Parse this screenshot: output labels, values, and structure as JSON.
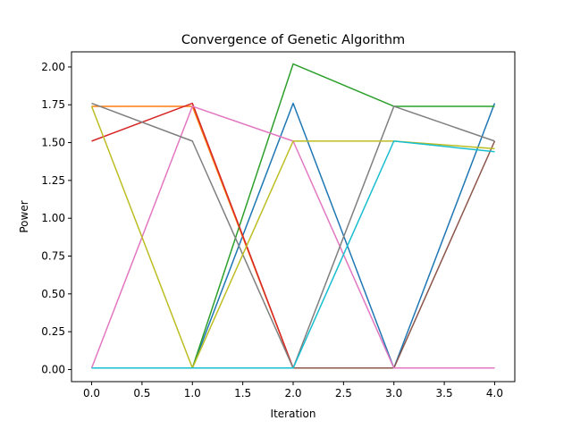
{
  "chart_data": {
    "type": "line",
    "title": "Convergence of Genetic Algorithm",
    "xlabel": "Iteration",
    "ylabel": "Power",
    "x": [
      0,
      1,
      2,
      3,
      4
    ],
    "xlim": [
      -0.2,
      4.2
    ],
    "ylim": [
      -0.08,
      2.1
    ],
    "xticks": [
      "0.0",
      "0.5",
      "1.0",
      "1.5",
      "2.0",
      "2.5",
      "3.0",
      "3.5",
      "4.0"
    ],
    "yticks": [
      "0.00",
      "0.25",
      "0.50",
      "0.75",
      "1.00",
      "1.25",
      "1.50",
      "1.75",
      "2.00"
    ],
    "grid": false,
    "series": [
      {
        "color": "#1f77b4",
        "values": [
          0.01,
          0.01,
          1.76,
          0.01,
          1.76
        ]
      },
      {
        "color": "#ff7f0e",
        "values": [
          1.74,
          1.74,
          0.01,
          0.01,
          0.01
        ]
      },
      {
        "color": "#2ca02c",
        "values": [
          0.01,
          0.01,
          2.02,
          1.74,
          1.74
        ]
      },
      {
        "color": "#d62728",
        "values": [
          1.51,
          1.76,
          0.01,
          0.01,
          0.01
        ]
      },
      {
        "color": "#9467bd",
        "values": [
          0.01,
          0.01,
          0.01,
          0.01,
          0.01
        ]
      },
      {
        "color": "#8c564b",
        "values": [
          0.01,
          0.01,
          0.01,
          0.01,
          1.51
        ]
      },
      {
        "color": "#e377c2",
        "values": [
          0.01,
          1.74,
          1.51,
          0.01,
          0.01
        ]
      },
      {
        "color": "#7f7f7f",
        "values": [
          1.76,
          1.51,
          0.01,
          1.74,
          1.51
        ]
      },
      {
        "color": "#bcbd22",
        "values": [
          1.74,
          0.01,
          1.51,
          1.51,
          1.46
        ]
      },
      {
        "color": "#17becf",
        "values": [
          0.01,
          0.01,
          0.01,
          1.51,
          1.44
        ]
      }
    ]
  }
}
